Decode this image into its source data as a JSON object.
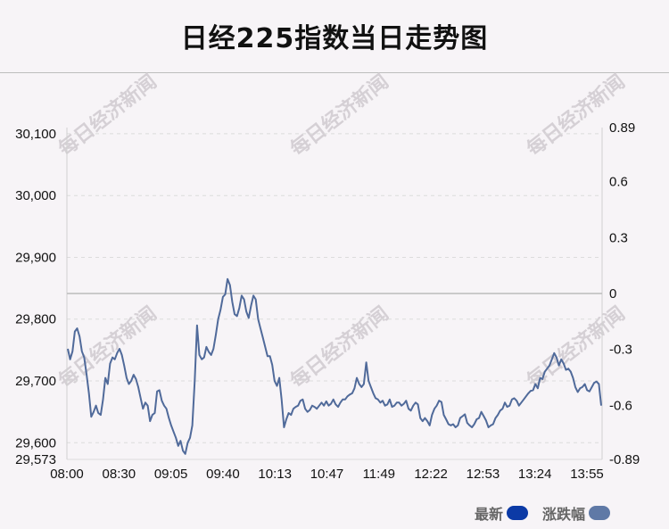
{
  "chart_data": {
    "type": "line",
    "title": "日经225指数当日走势图",
    "x_ticks": [
      "08:00",
      "08:30",
      "09:05",
      "09:40",
      "10:13",
      "10:47",
      "11:49",
      "12:22",
      "12:53",
      "13:24",
      "13:55"
    ],
    "y_left_ticks": [
      29573,
      29600,
      29700,
      29800,
      29900,
      30000,
      30100
    ],
    "y_left_tick_labels": [
      "29,573",
      "29,600",
      "29,700",
      "29,800",
      "29,900",
      "30,000",
      "30,100"
    ],
    "y_left_range": [
      29573,
      30110
    ],
    "y_right_ticks": [
      -0.89,
      -0.6,
      -0.3,
      0,
      0.3,
      0.6,
      0.89
    ],
    "y_right_tick_labels": [
      "-0.89",
      "-0.6",
      "-0.3",
      "0",
      "0.3",
      "0.6",
      "0.89"
    ],
    "y_right_range": [
      -0.89,
      0.89
    ],
    "reference_line": 0,
    "grid": "horizontal dashed",
    "legend": {
      "position": "bottom-right",
      "items": [
        {
          "label": "最新",
          "color": "#0c3aa6"
        },
        {
          "label": "涨跌幅",
          "color": "#5f79a6"
        }
      ]
    },
    "series": [
      {
        "name": "最新",
        "color": "#506a9a",
        "x_range": [
          "08:00",
          "13:57"
        ],
        "values": [
          29752,
          29735,
          29748,
          29780,
          29785,
          29772,
          29748,
          29738,
          29710,
          29680,
          29642,
          29650,
          29660,
          29648,
          29645,
          29670,
          29705,
          29695,
          29728,
          29738,
          29735,
          29745,
          29752,
          29742,
          29725,
          29705,
          29695,
          29700,
          29710,
          29703,
          29690,
          29672,
          29655,
          29665,
          29660,
          29635,
          29645,
          29648,
          29683,
          29685,
          29668,
          29660,
          29655,
          29640,
          29628,
          29618,
          29608,
          29595,
          29603,
          29587,
          29582,
          29600,
          29608,
          29628,
          29700,
          29790,
          29742,
          29735,
          29738,
          29755,
          29747,
          29742,
          29752,
          29775,
          29800,
          29815,
          29836,
          29840,
          29865,
          29855,
          29828,
          29808,
          29805,
          29818,
          29838,
          29832,
          29812,
          29802,
          29822,
          29838,
          29832,
          29800,
          29785,
          29770,
          29755,
          29740,
          29740,
          29726,
          29700,
          29692,
          29705,
          29670,
          29625,
          29638,
          29648,
          29645,
          29655,
          29658,
          29660,
          29668,
          29670,
          29655,
          29650,
          29653,
          29660,
          29658,
          29655,
          29660,
          29665,
          29660,
          29667,
          29660,
          29663,
          29670,
          29662,
          29658,
          29665,
          29670,
          29670,
          29675,
          29678,
          29680,
          29688,
          29705,
          29695,
          29690,
          29695,
          29730,
          29700,
          29690,
          29680,
          29672,
          29670,
          29665,
          29668,
          29660,
          29662,
          29670,
          29658,
          29660,
          29665,
          29665,
          29660,
          29663,
          29668,
          29655,
          29652,
          29660,
          29665,
          29662,
          29640,
          29635,
          29640,
          29635,
          29628,
          29645,
          29655,
          29660,
          29668,
          29666,
          29645,
          29638,
          29630,
          29628,
          29630,
          29625,
          29628,
          29640,
          29643,
          29646,
          29632,
          29628,
          29625,
          29630,
          29638,
          29640,
          29650,
          29643,
          29636,
          29625,
          29628,
          29630,
          29640,
          29645,
          29652,
          29655,
          29665,
          29658,
          29660,
          29670,
          29672,
          29668,
          29660,
          29665,
          29670,
          29675,
          29680,
          29684,
          29685,
          29695,
          29688,
          29705,
          29703,
          29715,
          29720,
          29725,
          29735,
          29745,
          29738,
          29725,
          29735,
          29728,
          29718,
          29720,
          29715,
          29705,
          29690,
          29682,
          29688,
          29690,
          29695,
          29685,
          29683,
          29690,
          29697,
          29699,
          29695,
          29660
        ]
      }
    ]
  },
  "watermark": "每日经济新闻"
}
